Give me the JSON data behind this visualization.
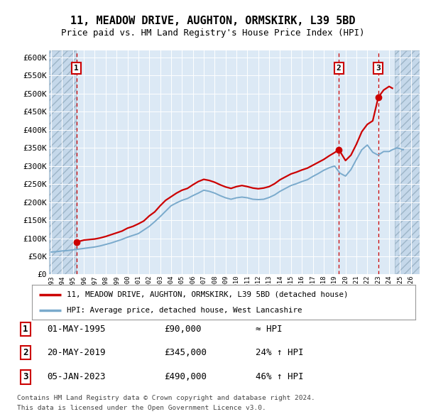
{
  "title": "11, MEADOW DRIVE, AUGHTON, ORMSKIRK, L39 5BD",
  "subtitle": "Price paid vs. HM Land Registry's House Price Index (HPI)",
  "ylim": [
    0,
    620000
  ],
  "xlim_start": 1992.8,
  "xlim_end": 2026.8,
  "yticks": [
    0,
    50000,
    100000,
    150000,
    200000,
    250000,
    300000,
    350000,
    400000,
    450000,
    500000,
    550000,
    600000
  ],
  "ytick_labels": [
    "£0",
    "£50K",
    "£100K",
    "£150K",
    "£200K",
    "£250K",
    "£300K",
    "£350K",
    "£400K",
    "£450K",
    "£500K",
    "£550K",
    "£600K"
  ],
  "background_color": "#dce9f5",
  "sale_dates": [
    1995.33,
    2019.38,
    2023.01
  ],
  "sale_prices": [
    90000,
    345000,
    490000
  ],
  "sale_labels": [
    "1",
    "2",
    "3"
  ],
  "sale_info": [
    [
      "1",
      "01-MAY-1995",
      "£90,000",
      "≈ HPI"
    ],
    [
      "2",
      "20-MAY-2019",
      "£345,000",
      "24% ↑ HPI"
    ],
    [
      "3",
      "05-JAN-2023",
      "£490,000",
      "46% ↑ HPI"
    ]
  ],
  "legend_line1": "11, MEADOW DRIVE, AUGHTON, ORMSKIRK, L39 5BD (detached house)",
  "legend_line2": "HPI: Average price, detached house, West Lancashire",
  "footer_line1": "Contains HM Land Registry data © Crown copyright and database right 2024.",
  "footer_line2": "This data is licensed under the Open Government Licence v3.0.",
  "red_line_color": "#cc0000",
  "blue_line_color": "#7aaacc",
  "hatch_left_end": 1995.25,
  "hatch_right_start": 2024.5,
  "hpi_years": [
    1995.33,
    1995.5,
    1996,
    1996.5,
    1997,
    1997.5,
    1998,
    1998.5,
    1999,
    1999.5,
    2000,
    2000.5,
    2001,
    2001.5,
    2002,
    2002.5,
    2003,
    2003.5,
    2004,
    2004.5,
    2005,
    2005.5,
    2006,
    2006.5,
    2007,
    2007.5,
    2008,
    2008.5,
    2009,
    2009.5,
    2010,
    2010.5,
    2011,
    2011.5,
    2012,
    2012.5,
    2013,
    2013.5,
    2014,
    2014.5,
    2015,
    2015.5,
    2016,
    2016.5,
    2017,
    2017.5,
    2018,
    2018.5,
    2019,
    2019.38,
    2019.5,
    2020,
    2020.5,
    2021,
    2021.5,
    2022,
    2022.5,
    2023.01,
    2023.5,
    2024,
    2024.3
  ],
  "hpi_red_values": [
    90000,
    91000,
    95000,
    96500,
    98000,
    101000,
    105000,
    110000,
    115000,
    120000,
    128000,
    133000,
    140000,
    148000,
    162000,
    173000,
    190000,
    205000,
    215000,
    225000,
    233000,
    238000,
    248000,
    257000,
    263000,
    260000,
    255000,
    248000,
    242000,
    238000,
    243000,
    246000,
    243000,
    239000,
    237000,
    239000,
    243000,
    251000,
    262000,
    270000,
    278000,
    283000,
    289000,
    294000,
    302000,
    310000,
    318000,
    328000,
    337000,
    345000,
    340000,
    315000,
    330000,
    360000,
    395000,
    415000,
    425000,
    490000,
    510000,
    520000,
    515000
  ],
  "hpi_blue_years": [
    1993,
    1993.5,
    1994,
    1994.5,
    1995,
    1995.5,
    1996,
    1996.5,
    1997,
    1997.5,
    1998,
    1998.5,
    1999,
    1999.5,
    2000,
    2000.5,
    2001,
    2001.5,
    2002,
    2002.5,
    2003,
    2003.5,
    2004,
    2004.5,
    2005,
    2005.5,
    2006,
    2006.5,
    2007,
    2007.5,
    2008,
    2008.5,
    2009,
    2009.5,
    2010,
    2010.5,
    2011,
    2011.5,
    2012,
    2012.5,
    2013,
    2013.5,
    2014,
    2014.5,
    2015,
    2015.5,
    2016,
    2016.5,
    2017,
    2017.5,
    2018,
    2018.5,
    2019,
    2019.5,
    2020,
    2020.5,
    2021,
    2021.5,
    2022,
    2022.5,
    2023,
    2023.5,
    2024,
    2024.3,
    2024.7,
    2025,
    2025.3
  ],
  "hpi_blue_values": [
    62000,
    63000,
    65000,
    66000,
    68000,
    70000,
    72000,
    74000,
    76000,
    79000,
    83000,
    87000,
    92000,
    97000,
    103000,
    108000,
    113000,
    123000,
    133000,
    146000,
    160000,
    175000,
    190000,
    198000,
    205000,
    210000,
    218000,
    225000,
    233000,
    230000,
    225000,
    218000,
    212000,
    208000,
    212000,
    214000,
    212000,
    208000,
    207000,
    208000,
    213000,
    220000,
    230000,
    238000,
    246000,
    251000,
    257000,
    262000,
    271000,
    279000,
    288000,
    295000,
    300000,
    280000,
    272000,
    290000,
    318000,
    345000,
    358000,
    338000,
    330000,
    340000,
    340000,
    345000,
    350000,
    348000,
    345000
  ]
}
